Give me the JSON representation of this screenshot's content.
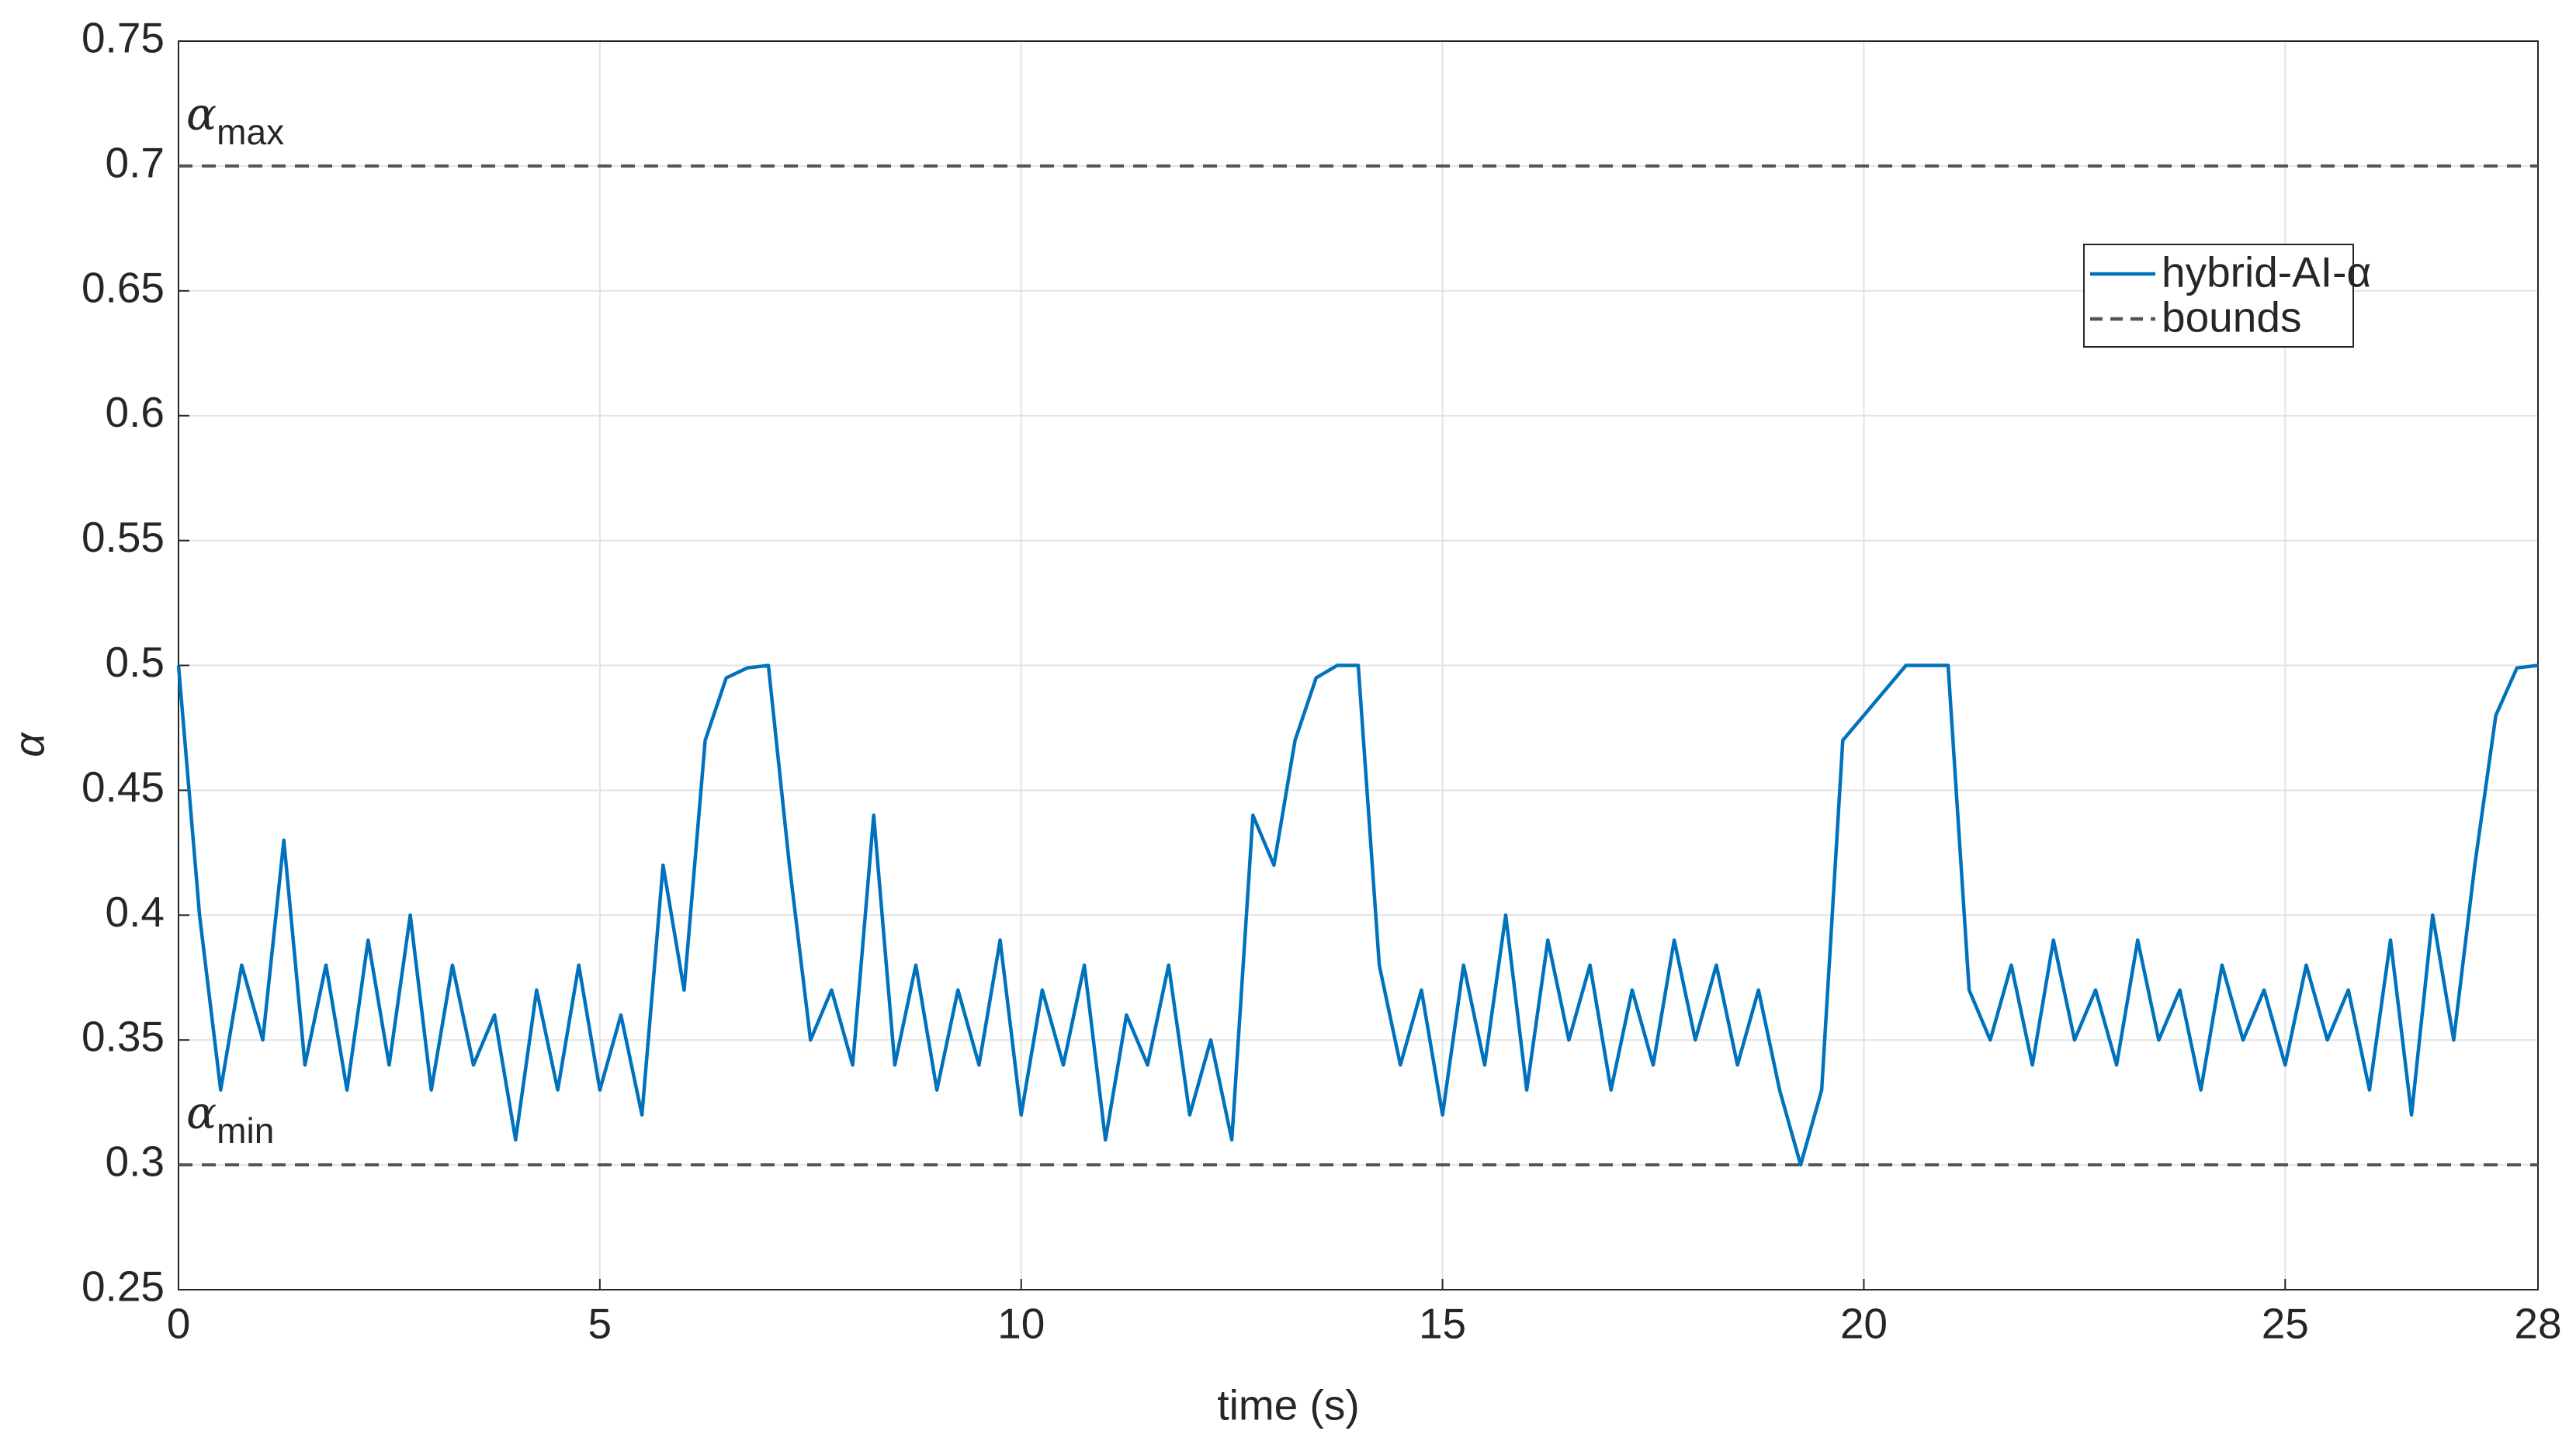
{
  "chart_data": {
    "type": "line",
    "xlabel": "time (s)",
    "ylabel": "α",
    "xlim": [
      0,
      28
    ],
    "xticks": [
      0,
      5,
      10,
      15,
      20,
      25,
      28
    ],
    "ylim": [
      0.25,
      0.75
    ],
    "yticks": [
      0.25,
      0.3,
      0.35,
      0.4,
      0.45,
      0.5,
      0.55,
      0.6,
      0.65,
      0.7,
      0.75
    ],
    "grid": true,
    "legend": "upper right",
    "x": [
      0,
      0.25,
      0.5,
      0.75,
      1,
      1.25,
      1.5,
      1.75,
      2,
      2.25,
      2.5,
      2.75,
      3,
      3.25,
      3.5,
      3.75,
      4,
      4.25,
      4.5,
      4.75,
      5,
      5.25,
      5.5,
      5.75,
      6,
      6.25,
      6.5,
      6.75,
      7,
      7.25,
      7.5,
      7.75,
      8,
      8.25,
      8.5,
      8.75,
      9,
      9.25,
      9.5,
      9.75,
      10,
      10.25,
      10.5,
      10.75,
      11,
      11.25,
      11.5,
      11.75,
      12,
      12.25,
      12.5,
      12.75,
      13,
      13.25,
      13.5,
      13.75,
      14,
      14.25,
      14.5,
      14.75,
      15,
      15.25,
      15.5,
      15.75,
      16,
      16.25,
      16.5,
      16.75,
      17,
      17.25,
      17.5,
      17.75,
      18,
      18.25,
      18.5,
      18.75,
      19,
      19.25,
      19.5,
      19.75,
      20,
      20.25,
      20.5,
      20.75,
      21,
      21.25,
      21.5,
      21.75,
      22,
      22.25,
      22.5,
      22.75,
      23,
      23.25,
      23.5,
      23.75,
      24,
      24.25,
      24.5,
      24.75,
      25,
      25.25,
      25.5,
      25.75,
      26,
      26.25,
      26.5,
      26.75,
      27,
      27.25,
      27.5,
      27.75,
      28
    ],
    "series": [
      {
        "name": "hybrid-AI-α",
        "color": "#0072bd",
        "values": [
          0.5,
          0.4,
          0.33,
          0.38,
          0.35,
          0.43,
          0.34,
          0.38,
          0.33,
          0.39,
          0.34,
          0.4,
          0.33,
          0.38,
          0.34,
          0.36,
          0.31,
          0.37,
          0.33,
          0.38,
          0.33,
          0.36,
          0.32,
          0.42,
          0.37,
          0.47,
          0.495,
          0.499,
          0.5,
          0.42,
          0.35,
          0.37,
          0.34,
          0.44,
          0.34,
          0.38,
          0.33,
          0.37,
          0.34,
          0.39,
          0.32,
          0.37,
          0.34,
          0.38,
          0.31,
          0.36,
          0.34,
          0.38,
          0.32,
          0.35,
          0.31,
          0.44,
          0.42,
          0.47,
          0.495,
          0.5,
          0.5,
          0.38,
          0.34,
          0.37,
          0.32,
          0.38,
          0.34,
          0.4,
          0.33,
          0.39,
          0.35,
          0.38,
          0.33,
          0.37,
          0.34,
          0.39,
          0.35,
          0.38,
          0.34,
          0.37,
          0.33,
          0.3,
          0.33,
          0.47,
          0.48,
          0.49,
          0.5,
          0.5,
          0.5,
          0.37,
          0.35,
          0.38,
          0.34,
          0.39,
          0.35,
          0.37,
          0.34,
          0.39,
          0.35,
          0.37,
          0.33,
          0.38,
          0.35,
          0.37,
          0.34,
          0.38,
          0.35,
          0.37,
          0.33,
          0.39,
          0.32,
          0.4,
          0.35,
          0.42,
          0.48,
          0.499,
          0.5
        ]
      }
    ],
    "bounds": {
      "name": "bounds",
      "color": "#555555",
      "values": [
        0.7,
        0.3
      ]
    },
    "annotations": [
      {
        "text": "α",
        "subscript": "max"
      },
      {
        "text": "α",
        "subscript": "min"
      }
    ]
  }
}
